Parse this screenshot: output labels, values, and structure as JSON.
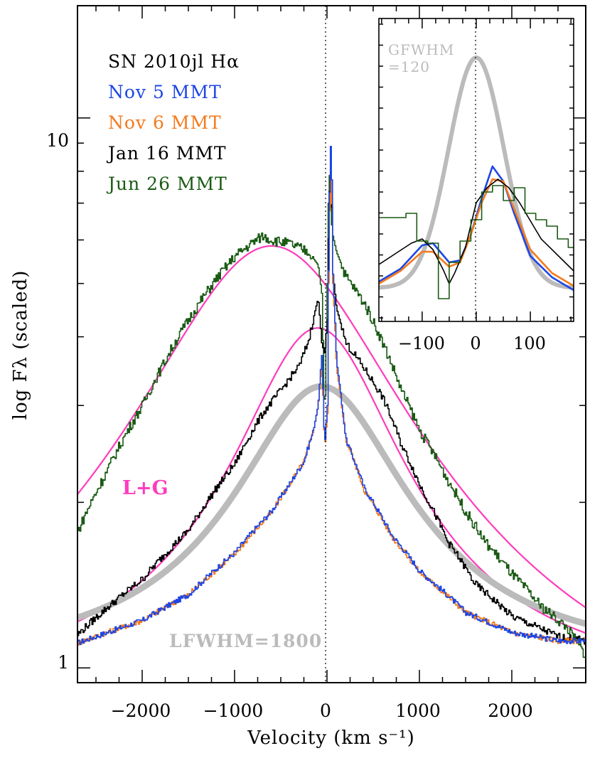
{
  "chart_data": [
    {
      "type": "line",
      "title": "",
      "xlabel": "Velocity (km s⁻¹)",
      "ylabel": "log Fλ (scaled)",
      "xlim": [
        -2700,
        2800
      ],
      "ylim": [
        0.94,
        16.0
      ],
      "y_scale": "log",
      "x_ticks": [
        -2000,
        -1000,
        0,
        1000,
        2000
      ],
      "x_tick_labels": [
        "−2000",
        "−1000",
        "0",
        "1000",
        "2000"
      ],
      "y_tick_labels": [
        {
          "value": 1,
          "label": "1"
        },
        {
          "value": 10,
          "label": "10"
        }
      ],
      "legend": {
        "placement": "top-left",
        "title": "SN 2010jl Hα",
        "title_color": "#000000",
        "entries": [
          "Nov 5 MMT",
          "Nov 6 MMT",
          "Jan 16 MMT",
          "Jun 26 MMT"
        ]
      },
      "series": [
        {
          "name": "Nov 5 MMT",
          "color": "#1d46e6",
          "x": [
            -2700,
            -2000,
            -1500,
            -1000,
            -600,
            -400,
            -250,
            -150,
            -100,
            -60,
            -30,
            0,
            20,
            40,
            60,
            100,
            200,
            400,
            700,
            1000,
            1500,
            2000,
            2500,
            2800
          ],
          "y": [
            1.11,
            1.22,
            1.36,
            1.62,
            1.93,
            2.17,
            2.38,
            2.7,
            3.0,
            3.7,
            2.5,
            3.0,
            6.8,
            9.4,
            5.2,
            3.6,
            2.6,
            2.12,
            1.74,
            1.5,
            1.26,
            1.16,
            1.12,
            1.12
          ]
        },
        {
          "name": "Nov 6 MMT",
          "color": "#f47a1c",
          "x": [
            -2700,
            -2000,
            -1500,
            -1000,
            -600,
            -400,
            -250,
            -150,
            -100,
            -60,
            -30,
            0,
            20,
            40,
            60,
            100,
            200,
            400,
            700,
            1000,
            1500,
            2000,
            2500,
            2800
          ],
          "y": [
            1.11,
            1.22,
            1.36,
            1.61,
            1.92,
            2.17,
            2.38,
            2.7,
            3.0,
            3.55,
            2.5,
            2.9,
            6.4,
            8.3,
            5.0,
            3.5,
            2.6,
            2.1,
            1.73,
            1.49,
            1.26,
            1.16,
            1.12,
            1.12
          ]
        },
        {
          "name": "Jan 16 MMT",
          "color": "#000000",
          "x": [
            -2700,
            -2000,
            -1500,
            -1000,
            -700,
            -500,
            -300,
            -200,
            -100,
            -60,
            -30,
            0,
            20,
            40,
            60,
            100,
            200,
            400,
            600,
            800,
            1000,
            1300,
            1600,
            2000,
            2500,
            2800
          ],
          "y": [
            1.15,
            1.45,
            1.78,
            2.35,
            2.9,
            3.2,
            3.55,
            3.95,
            4.7,
            3.9,
            3.7,
            4.3,
            7.2,
            8.0,
            5.2,
            4.5,
            3.9,
            3.5,
            3.1,
            2.55,
            2.15,
            1.7,
            1.42,
            1.24,
            1.14,
            1.12
          ]
        },
        {
          "name": "Jun 26 MMT",
          "color": "#1a5a14",
          "x": [
            -2700,
            -2400,
            -2000,
            -1800,
            -1500,
            -1200,
            -1000,
            -800,
            -700,
            -600,
            -400,
            -200,
            -100,
            -60,
            -30,
            0,
            15,
            30,
            50,
            100,
            200,
            400,
            600,
            800,
            1000,
            1300,
            1500,
            1700,
            2000,
            2300,
            2600,
            2800
          ],
          "y": [
            1.77,
            2.25,
            3.0,
            3.5,
            4.3,
            5.1,
            5.6,
            5.95,
            6.1,
            6.0,
            5.9,
            5.7,
            5.4,
            4.8,
            2.65,
            5.0,
            7.5,
            8.1,
            6.2,
            5.7,
            5.15,
            4.6,
            3.9,
            3.2,
            2.7,
            2.2,
            1.92,
            1.7,
            1.48,
            1.3,
            1.18,
            1.05
          ]
        }
      ],
      "fits": [
        {
          "label": "L+G",
          "color": "#ff3bbd",
          "kind": "Lorentzian+Gaussian fit",
          "series": "Jun 26 MMT",
          "peak_x": -600,
          "peak_y": 5.85
        },
        {
          "label": "",
          "color": "#ff3bbd",
          "kind": "Lorentzian+Gaussian fit",
          "series": "Jan 16 MMT",
          "peak_x": -100,
          "peak_y": 4.15
        },
        {
          "label": "LFWHM=1800",
          "color": "#bbbbbb",
          "kind": "Lorentzian fit",
          "fwhm_km_s": 1800,
          "peak_x": -60,
          "peak_y": 3.25
        }
      ],
      "annotations": [
        {
          "text": "L+G",
          "color": "#ff3bbd"
        },
        {
          "text": "LFWHM=1800",
          "color": "#bbbbbb"
        }
      ],
      "vertical_line": {
        "x": 0,
        "style": "dotted"
      }
    },
    {
      "type": "line",
      "title": "",
      "xlabel": "",
      "ylabel": "",
      "xlim": [
        -180,
        180
      ],
      "x_ticks": [
        -100,
        0,
        100
      ],
      "x_tick_labels": [
        "−100",
        "0",
        "100"
      ],
      "placement": "inset top-right",
      "series": [
        {
          "name": "Nov 5 MMT",
          "color": "#1d46e6",
          "x": [
            -180,
            -140,
            -100,
            -80,
            -50,
            -30,
            -10,
            10,
            30,
            50,
            70,
            100,
            140,
            180
          ],
          "y": [
            0.08,
            0.14,
            0.25,
            0.26,
            0.17,
            0.18,
            0.3,
            0.47,
            0.62,
            0.55,
            0.4,
            0.2,
            0.1,
            0.04
          ]
        },
        {
          "name": "Nov 6 MMT",
          "color": "#f47a1c",
          "x": [
            -180,
            -140,
            -100,
            -80,
            -50,
            -30,
            -10,
            10,
            30,
            50,
            70,
            100,
            140,
            180
          ],
          "y": [
            0.07,
            0.13,
            0.22,
            0.22,
            0.15,
            0.17,
            0.3,
            0.45,
            0.56,
            0.55,
            0.42,
            0.23,
            0.12,
            0.06
          ]
        },
        {
          "name": "Jan 16 MMT",
          "color": "#000000",
          "x": [
            -180,
            -150,
            -120,
            -100,
            -80,
            -60,
            -50,
            -40,
            -20,
            0,
            20,
            40,
            60,
            80,
            120,
            160,
            180
          ],
          "y": [
            0.16,
            0.21,
            0.26,
            0.28,
            0.23,
            0.13,
            0.07,
            0.12,
            0.24,
            0.45,
            0.52,
            0.56,
            0.52,
            0.45,
            0.28,
            0.18,
            0.13
          ]
        },
        {
          "name": "Jun 26 MMT",
          "color": "#1a5a14",
          "x": [
            -180,
            -160,
            -140,
            -120,
            -100,
            -80,
            -60,
            -40,
            -20,
            0,
            20,
            40,
            60,
            80,
            100,
            120,
            140,
            160,
            180
          ],
          "y": [
            0.38,
            0.38,
            0.38,
            0.4,
            0.27,
            0.26,
            0.0,
            0.17,
            0.27,
            0.37,
            0.5,
            0.53,
            0.46,
            0.52,
            0.4,
            0.37,
            0.34,
            0.28,
            0.24
          ]
        }
      ],
      "fits": [
        {
          "label": "GFWHM =120",
          "color": "#bbbbbb",
          "kind": "Gaussian",
          "fwhm_km_s": 120
        }
      ],
      "annotations": [
        {
          "text": "GFWHM",
          "color": "#bbbbbb"
        },
        {
          "text": "=120",
          "color": "#bbbbbb"
        }
      ],
      "vertical_line": {
        "x": 0,
        "style": "dotted"
      }
    }
  ]
}
